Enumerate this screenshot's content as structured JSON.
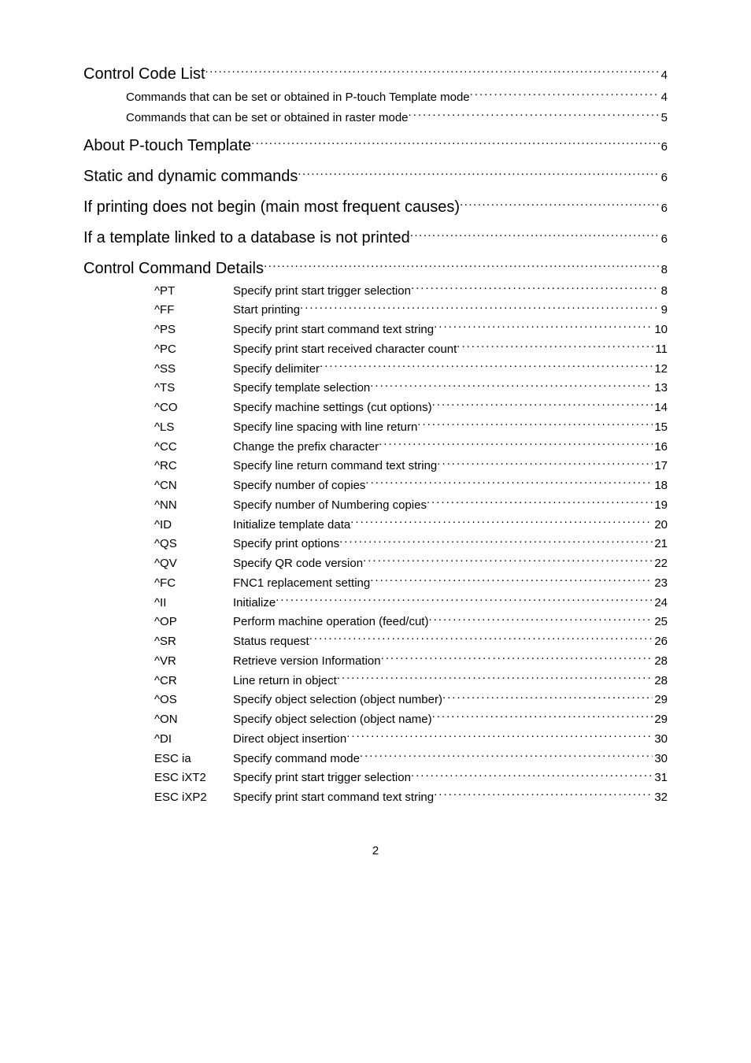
{
  "footer_page_number": "2",
  "toc": [
    {
      "level": 1,
      "title": "Control Code List",
      "page": "4"
    },
    {
      "level": 2,
      "title": "Commands that can be set or obtained in P-touch Template mode",
      "page": "4"
    },
    {
      "level": 2,
      "title": "Commands that can be set or obtained in raster mode",
      "page": "5"
    },
    {
      "level": 1,
      "title": "About P-touch Template",
      "page": "6"
    },
    {
      "level": 1,
      "title": "Static and dynamic commands",
      "page": "6"
    },
    {
      "level": 1,
      "title": "If printing does not begin (main most frequent causes)",
      "page": "6"
    },
    {
      "level": 1,
      "title": "If a template linked to a database is not printed",
      "page": "6"
    },
    {
      "level": 1,
      "title": "Control Command Details",
      "page": "8"
    },
    {
      "level": 3,
      "cmd": "^PT",
      "desc": "Specify print start trigger selection",
      "page": "8"
    },
    {
      "level": 3,
      "cmd": "^FF",
      "desc": "Start printing",
      "page": "9"
    },
    {
      "level": 3,
      "cmd": "^PS",
      "desc": "Specify print start command text string",
      "page": "10"
    },
    {
      "level": 3,
      "cmd": "^PC",
      "desc": "Specify print start received character count",
      "page": "11"
    },
    {
      "level": 3,
      "cmd": "^SS",
      "desc": "Specify delimiter",
      "page": "12"
    },
    {
      "level": 3,
      "cmd": "^TS",
      "desc": "Specify template selection",
      "page": "13"
    },
    {
      "level": 3,
      "cmd": "^CO",
      "desc": "Specify machine settings (cut options)",
      "page": "14"
    },
    {
      "level": 3,
      "cmd": "^LS",
      "desc": "Specify line spacing with line return",
      "page": "15"
    },
    {
      "level": 3,
      "cmd": "^CC",
      "desc": "Change the prefix character",
      "page": "16"
    },
    {
      "level": 3,
      "cmd": "^RC",
      "desc": "Specify line return command text string",
      "page": "17"
    },
    {
      "level": 3,
      "cmd": "^CN",
      "desc": "Specify number of copies",
      "page": "18"
    },
    {
      "level": 3,
      "cmd": "^NN",
      "desc": "Specify number of Numbering copies",
      "page": "19"
    },
    {
      "level": 3,
      "cmd": "^ID",
      "desc": "Initialize template data",
      "page": "20"
    },
    {
      "level": 3,
      "cmd": "^QS",
      "desc": "Specify print options",
      "page": "21"
    },
    {
      "level": 3,
      "cmd": "^QV",
      "desc": "Specify QR code version",
      "page": "22"
    },
    {
      "level": 3,
      "cmd": "^FC",
      "desc": "FNC1 replacement setting",
      "page": "23"
    },
    {
      "level": 3,
      "cmd": "^II",
      "desc": "Initialize",
      "page": "24"
    },
    {
      "level": 3,
      "cmd": "^OP",
      "desc": "Perform machine operation (feed/cut)",
      "page": "25"
    },
    {
      "level": 3,
      "cmd": "^SR",
      "desc": "Status request",
      "page": "26"
    },
    {
      "level": 3,
      "cmd": "^VR",
      "desc": "Retrieve version Information",
      "page": "28"
    },
    {
      "level": 3,
      "cmd": "^CR",
      "desc": "Line return in object",
      "page": "28"
    },
    {
      "level": 3,
      "cmd": "^OS",
      "desc": "Specify object selection (object number)",
      "page": "29"
    },
    {
      "level": 3,
      "cmd": "^ON",
      "desc": "Specify object selection (object name)",
      "page": "29"
    },
    {
      "level": 3,
      "cmd": "^DI",
      "desc": "Direct object insertion",
      "page": "30"
    },
    {
      "level": 3,
      "cmd": "ESC ia",
      "desc": "Specify command mode",
      "page": "30"
    },
    {
      "level": 3,
      "cmd": "ESC iXT2",
      "desc": "Specify print start trigger selection",
      "page": "31"
    },
    {
      "level": 3,
      "cmd": "ESC iXP2",
      "desc": "Specify print start command text string",
      "page": "32"
    }
  ]
}
